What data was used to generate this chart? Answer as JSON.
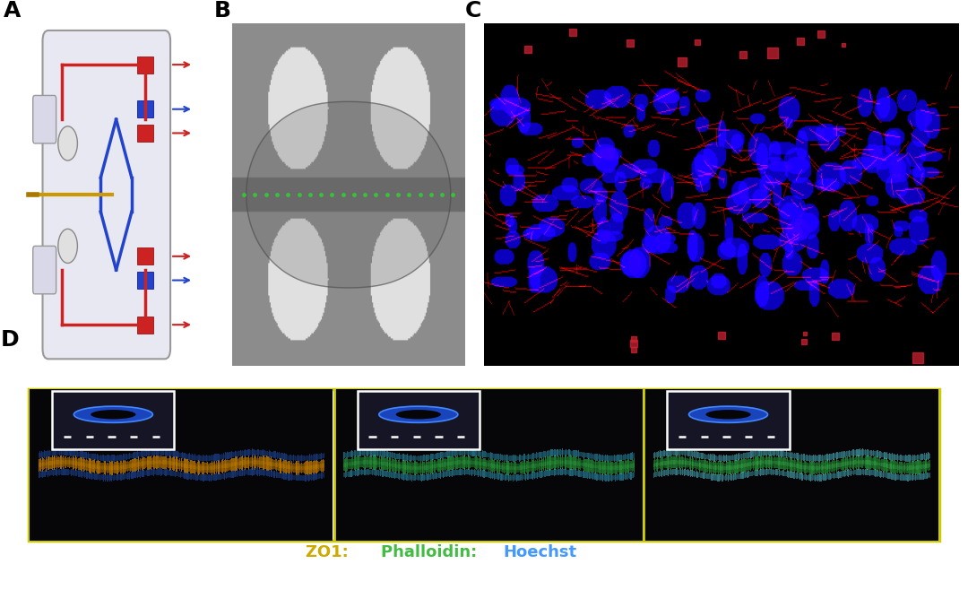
{
  "fig_width": 10.8,
  "fig_height": 6.58,
  "dpi": 100,
  "bg_color": "#ffffff",
  "panel_labels": [
    "A",
    "B",
    "C",
    "D"
  ],
  "panel_label_fontsize": 18,
  "panel_label_weight": "bold",
  "panel_A": {
    "bg": "#f0f0f5",
    "chip_bg": "#e8e8f2",
    "red_color": "#cc2222",
    "blue_color": "#2244cc",
    "gold_color": "#cc9900"
  },
  "panel_B": {
    "bg": "#888888"
  },
  "panel_C": {
    "bg": "#000000",
    "blue_color": "#3366ff",
    "red_color": "#cc2244"
  },
  "panel_D": {
    "bg": "#0a0a0a",
    "border_color": "#cccc00",
    "zo1_color": "#ccaa00",
    "phalloidin_color": "#44bb44",
    "hoechst_color": "#4499ff",
    "text_fontsize": 13
  }
}
